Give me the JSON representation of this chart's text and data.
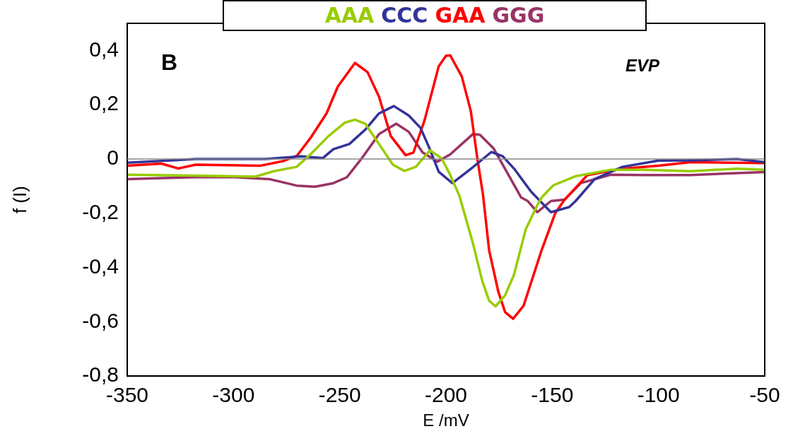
{
  "chart_data": {
    "type": "line",
    "xlabel": "E /mV",
    "ylabel": "f (I)",
    "annotations": [
      "B",
      "EVP"
    ],
    "xlim": [
      -350,
      -50
    ],
    "xticks": [
      -350,
      -300,
      -250,
      -200,
      -150,
      -100,
      -50
    ],
    "ylim": [
      -0.8,
      0.5
    ],
    "yticks": [
      {
        "value": -0.8,
        "label": "-0,8"
      },
      {
        "value": -0.6,
        "label": "-0,6"
      },
      {
        "value": -0.4,
        "label": "-0,4"
      },
      {
        "value": -0.2,
        "label": "-0,2"
      },
      0,
      {
        "value": 0.2,
        "label": "0,2"
      },
      {
        "value": 0.4,
        "label": "0,4"
      }
    ],
    "grid": false,
    "ref_lines": [
      {
        "axis": "y",
        "value": 0,
        "color": "#888888"
      }
    ],
    "legend": "top",
    "marker": "none",
    "line_style": "solid",
    "series": [
      {
        "name": "AAA",
        "color": "#99cc00",
        "x": [
          -350,
          -317.7,
          -289.7,
          -281,
          -270.3,
          -263.8,
          -255.2,
          -247.6,
          -242.8,
          -238,
          -231.5,
          -225,
          -219.6,
          -214.2,
          -207.5,
          -202,
          -198,
          -193.7,
          -187.2,
          -182.9,
          -179.7,
          -176.7,
          -172.2,
          -168,
          -162.5,
          -157,
          -155,
          -149.5,
          -138.8,
          -122.6,
          -106.4,
          -85,
          -63.3,
          -50
        ],
        "values": [
          -0.058,
          -0.061,
          -0.065,
          -0.045,
          -0.029,
          0.017,
          0.085,
          0.134,
          0.145,
          0.13,
          0.055,
          -0.021,
          -0.044,
          -0.029,
          0.032,
          0.002,
          -0.059,
          -0.135,
          -0.314,
          -0.45,
          -0.522,
          -0.543,
          -0.503,
          -0.427,
          -0.26,
          -0.17,
          -0.142,
          -0.097,
          -0.063,
          -0.04,
          -0.04,
          -0.045,
          -0.036,
          -0.04
        ]
      },
      {
        "name": "CCC",
        "color": "#333399",
        "x": [
          -350,
          -317.7,
          -285,
          -268,
          -258,
          -253,
          -245.5,
          -238,
          -231.5,
          -224.5,
          -217.5,
          -212,
          -207.8,
          -203.4,
          -197,
          -187.3,
          -178.6,
          -173.3,
          -167.9,
          -160,
          -150.6,
          -142,
          -139,
          -130,
          -117,
          -100,
          -85,
          -63,
          -50
        ],
        "values": [
          -0.014,
          0,
          0,
          0.01,
          0.003,
          0.036,
          0.055,
          0.108,
          0.168,
          0.195,
          0.16,
          0.115,
          0.04,
          -0.047,
          -0.089,
          -0.03,
          0.026,
          0.01,
          -0.036,
          -0.12,
          -0.196,
          -0.177,
          -0.155,
          -0.074,
          -0.029,
          -0.006,
          -0.005,
          0,
          -0.012
        ]
      },
      {
        "name": "GAA",
        "color": "#ff0000",
        "x": [
          -350,
          -334,
          -326,
          -317.7,
          -287.5,
          -276.7,
          -270,
          -263.8,
          -256.2,
          -250.9,
          -242.8,
          -236.9,
          -231.5,
          -226,
          -219,
          -215.3,
          -210,
          -203.4,
          -200,
          -198,
          -192.6,
          -188.3,
          -185.1,
          -182.6,
          -179.7,
          -175.4,
          -172.2,
          -168.4,
          -163.5,
          -155,
          -148.6,
          -144.2,
          -133.4,
          -117.2,
          -100,
          -85,
          -50
        ],
        "values": [
          -0.025,
          -0.017,
          -0.035,
          -0.021,
          -0.025,
          -0.008,
          0.013,
          0.077,
          0.168,
          0.267,
          0.354,
          0.32,
          0.229,
          0.085,
          0.014,
          0.024,
          0.145,
          0.342,
          0.38,
          0.382,
          0.305,
          0.176,
          -0.006,
          -0.13,
          -0.336,
          -0.488,
          -0.564,
          -0.589,
          -0.541,
          -0.336,
          -0.2,
          -0.15,
          -0.059,
          -0.036,
          -0.025,
          -0.012,
          -0.015
        ]
      },
      {
        "name": "GGG",
        "color": "#993366",
        "x": [
          -350,
          -317.7,
          -299.4,
          -283.2,
          -270.3,
          -261.6,
          -253,
          -246.6,
          -239,
          -231.5,
          -223.4,
          -217.5,
          -211,
          -204,
          -198,
          -187.3,
          -184,
          -177.6,
          -170,
          -164.6,
          -161.5,
          -157,
          -150.6,
          -144.2,
          -136.6,
          -122.6,
          -106.4,
          -85,
          -50
        ],
        "values": [
          -0.074,
          -0.067,
          -0.067,
          -0.074,
          -0.098,
          -0.102,
          -0.089,
          -0.067,
          0.009,
          0.092,
          0.13,
          0.1,
          0.024,
          -0.01,
          0.017,
          0.092,
          0.089,
          0.039,
          -0.067,
          -0.142,
          -0.155,
          -0.196,
          -0.155,
          -0.15,
          -0.089,
          -0.058,
          -0.059,
          -0.059,
          -0.048
        ]
      }
    ]
  }
}
